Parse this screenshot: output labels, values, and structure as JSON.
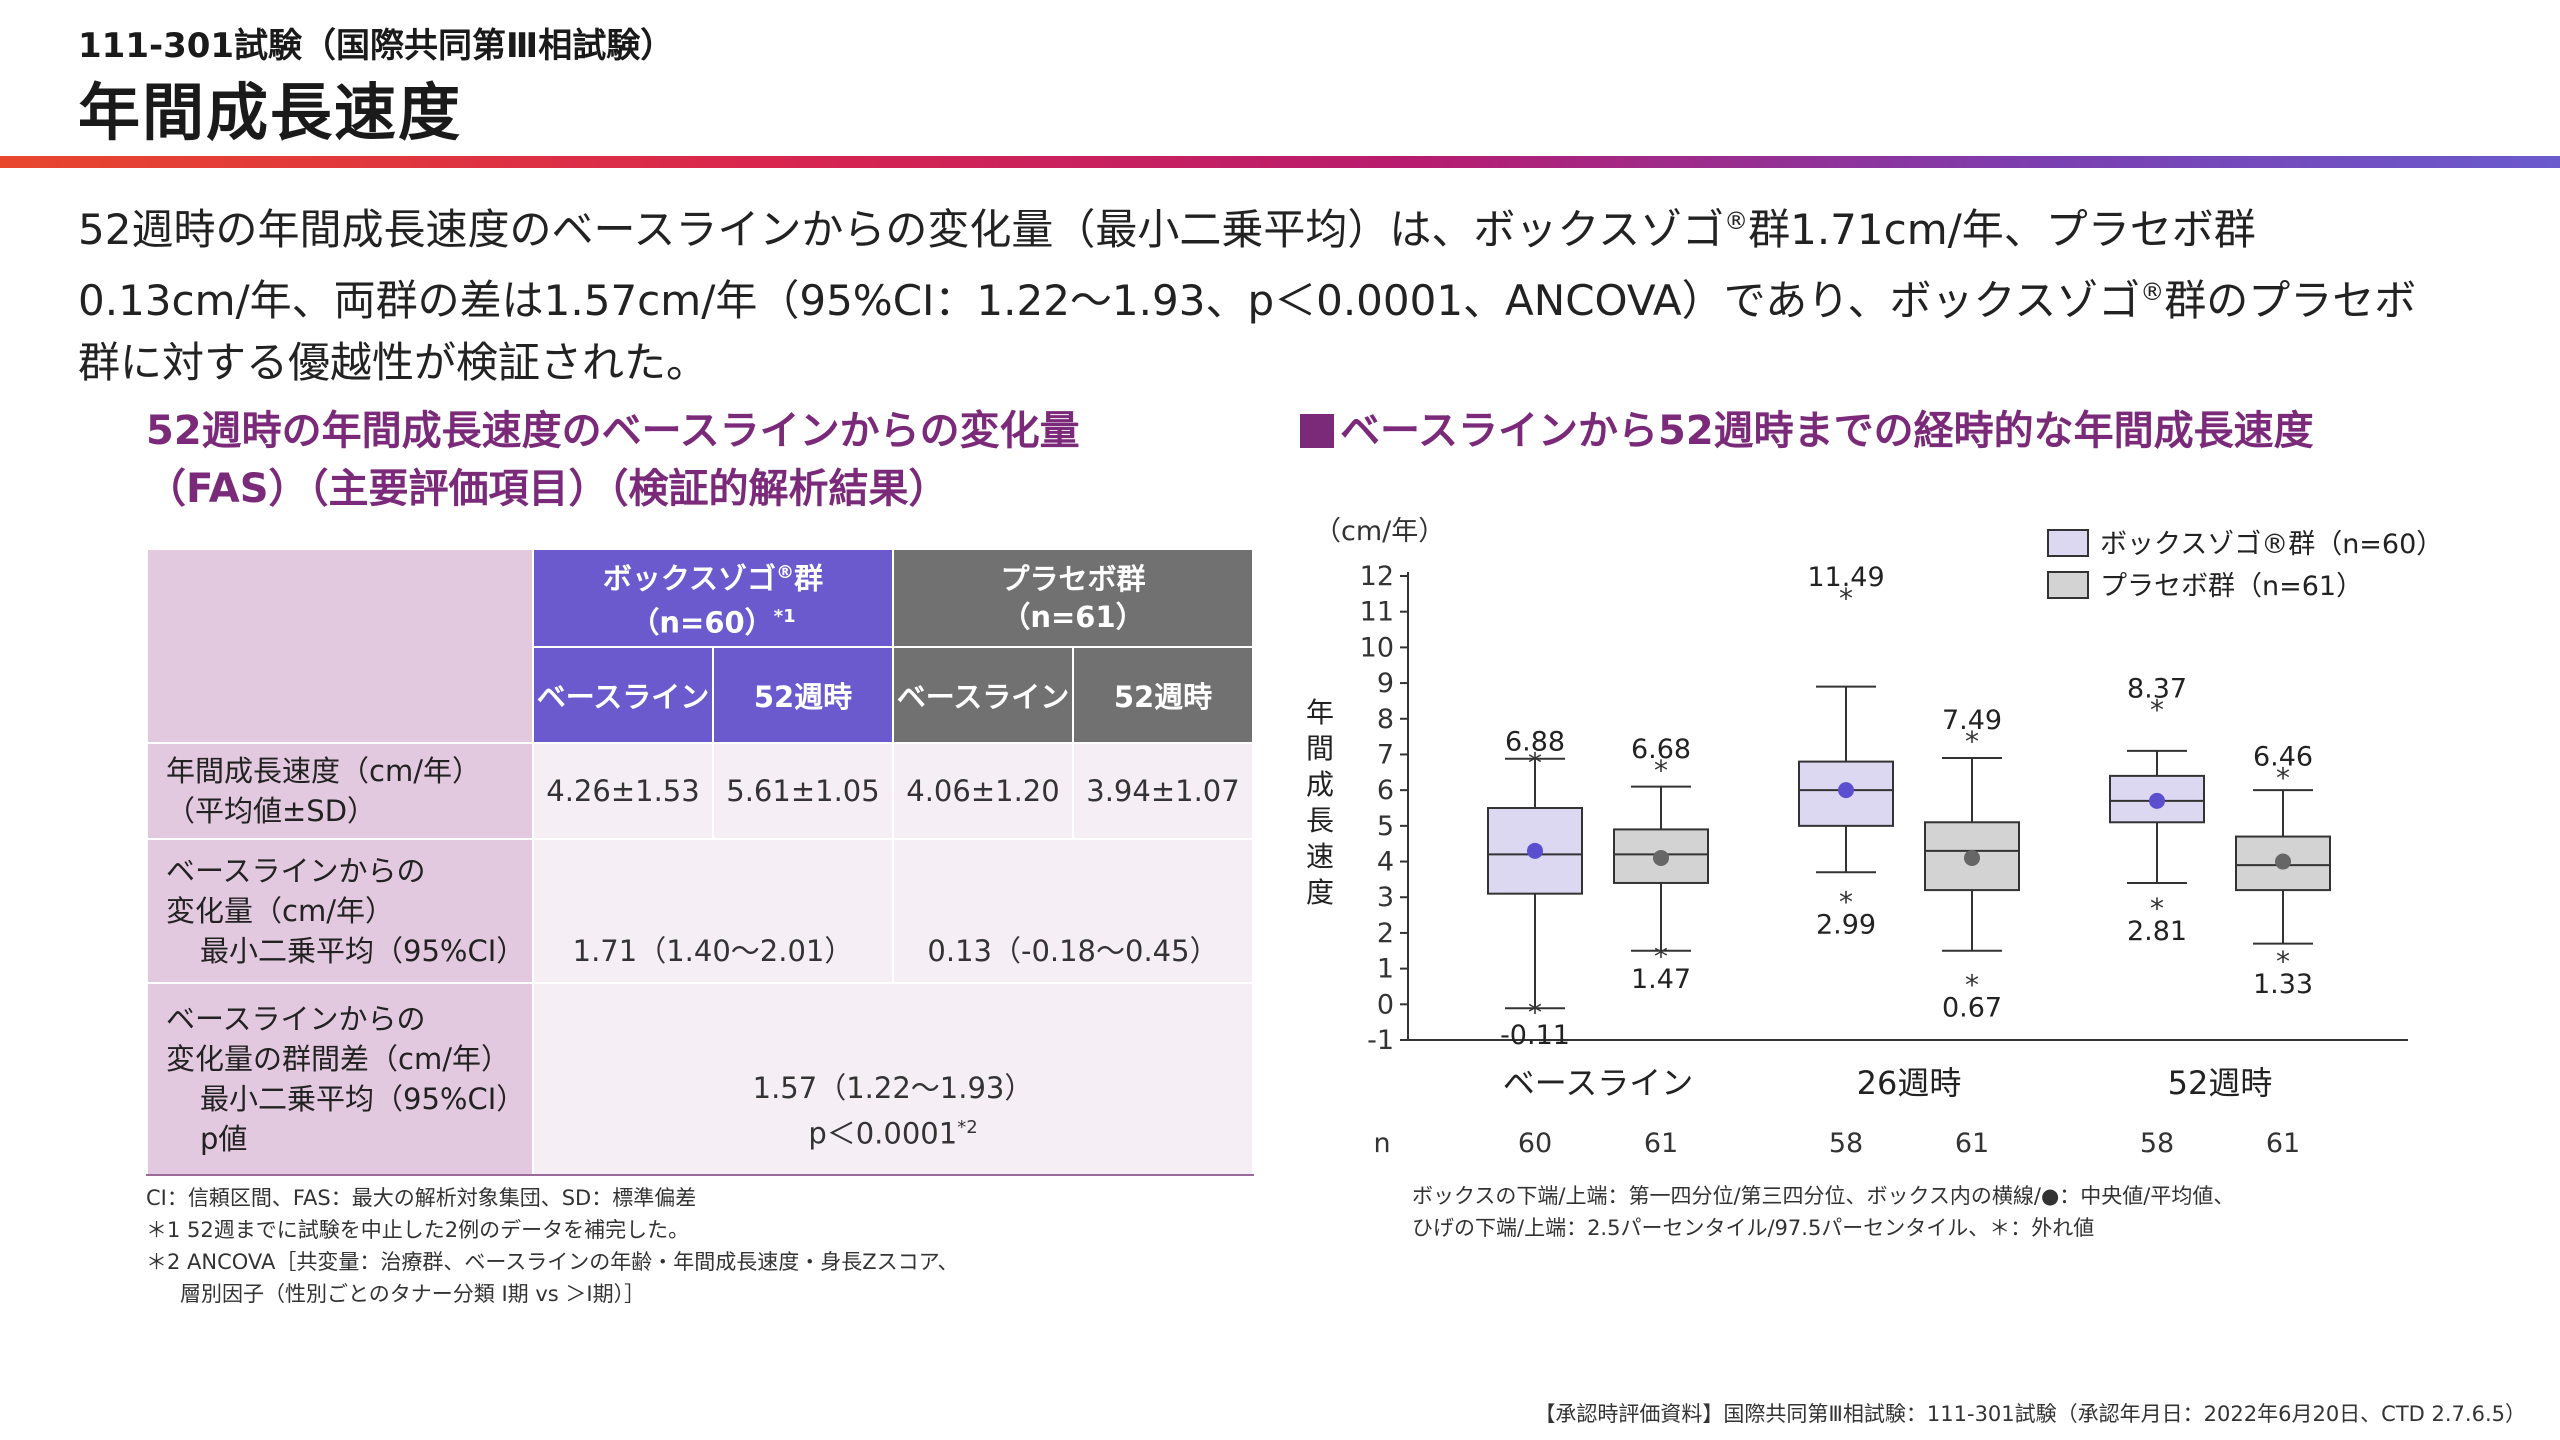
{
  "header": {
    "subtitle": "111-301試験（国際共同第Ⅲ相試験）",
    "title": "年間成長速度",
    "accent_colors": [
      "#e8472e",
      "#b81c6e",
      "#6a5acd"
    ]
  },
  "summary": {
    "line1_a": "52週時の年間成長速度のベースラインからの変化量（最小二乗平均）は、ボックスゾゴ",
    "reg": "®",
    "line1_b": "群1.71cm/年、プラセボ群",
    "line2_a": "0.13cm/年、両群の差は1.57cm/年（95%CI：1.22〜1.93、p＜0.0001、ANCOVA）であり、ボックスゾゴ",
    "line2_b": "群のプラセボ",
    "line3": "群に対する優越性が検証された。"
  },
  "left_section": {
    "title_line1": "52週時の年間成長速度のベースラインからの変化量",
    "title_line2": "（FAS）（主要評価項目）（検証的解析結果）"
  },
  "table": {
    "voxzogo_header_line1": "ボックスゾゴ",
    "voxzogo_header_reg": "®",
    "voxzogo_header_line1b": "群",
    "voxzogo_header_line2": "（n=60）",
    "voxzogo_header_note": "*1",
    "placebo_header_line1": "プラセボ群",
    "placebo_header_line2": "（n=61）",
    "sub_baseline": "ベースライン",
    "sub_52w": "52週時",
    "row1_label_line1": "年間成長速度（cm/年）",
    "row1_label_line2": "（平均値±SD）",
    "row1_values": [
      "4.26±1.53",
      "5.61±1.05",
      "4.06±1.20",
      "3.94±1.07"
    ],
    "row2_label_line1": "ベースラインからの",
    "row2_label_line2": "変化量（cm/年）",
    "row2_label_line3": "最小二乗平均（95%CI）",
    "row2_voxzogo": "1.71（1.40〜2.01）",
    "row2_placebo": "0.13（-0.18〜0.45）",
    "row3_label_line1": "ベースラインからの",
    "row3_label_line2": "変化量の群間差（cm/年）",
    "row3_label_line3": "最小二乗平均（95%CI）",
    "row3_label_line4": "p値",
    "row3_value_line1": "1.57（1.22〜1.93）",
    "row3_value_line2": "p＜0.0001",
    "row3_value_note": "*2"
  },
  "notes": {
    "line1": "CI：信頼区間、FAS：最大の解析対象集団、SD：標準偏差",
    "line2": "＊1 52週までに試験を中止した2例のデータを補完した。",
    "line3": "＊2 ANCOVA［共変量：治療群、ベースラインの年齢・年間成長速度・身長Zスコア、",
    "line4": "層別因子（性別ごとのタナー分類 Ⅰ期 vs ＞Ⅰ期）］"
  },
  "right_section": {
    "title": "ベースラインから52週時までの経時的な年間成長速度"
  },
  "chart_data": {
    "type": "boxplot",
    "title": "ベースラインから52週時までの経時的な年間成長速度",
    "ylabel": "年間成長速度",
    "yunit": "（cm/年）",
    "ylim": [
      -1,
      12
    ],
    "yticks": [
      -1,
      0,
      1,
      2,
      3,
      4,
      5,
      6,
      7,
      8,
      9,
      10,
      11,
      12
    ],
    "categories": [
      "ベースライン",
      "26週時",
      "52週時"
    ],
    "n_label": "n",
    "legend_placement": "top-right",
    "series": [
      {
        "name": "ボックスゾゴ®群（n=60）",
        "color": "#dcd8f2",
        "dot_color": "#5b4fcf",
        "boxes": [
          {
            "whisker_low": -0.11,
            "q1": 3.1,
            "median": 4.2,
            "mean": 4.3,
            "q3": 5.5,
            "whisker_high": 6.88,
            "outliers": [
              -0.11,
              6.88
            ],
            "outlier_labels": [
              "-0.11",
              "6.88"
            ],
            "n": "60"
          },
          {
            "whisker_low": 3.7,
            "q1": 5.0,
            "median": 6.0,
            "mean": 6.0,
            "q3": 6.8,
            "whisker_high": 8.9,
            "outliers": [
              11.49,
              2.99
            ],
            "outlier_labels": [
              "11.49",
              "2.99"
            ],
            "n": "58"
          },
          {
            "whisker_low": 3.4,
            "q1": 5.1,
            "median": 5.7,
            "mean": 5.7,
            "q3": 6.4,
            "whisker_high": 7.1,
            "outliers": [
              8.37,
              2.81
            ],
            "outlier_labels": [
              "8.37",
              "2.81"
            ],
            "n": "58"
          }
        ]
      },
      {
        "name": "プラセボ群（n=61）",
        "color": "#d3d3d3",
        "dot_color": "#666666",
        "boxes": [
          {
            "whisker_low": 1.5,
            "q1": 3.4,
            "median": 4.2,
            "mean": 4.1,
            "q3": 4.9,
            "whisker_high": 6.1,
            "outliers": [
              6.68,
              1.47
            ],
            "outlier_labels": [
              "6.68",
              "1.47"
            ],
            "n": "61"
          },
          {
            "whisker_low": 1.5,
            "q1": 3.2,
            "median": 4.3,
            "mean": 4.1,
            "q3": 5.1,
            "whisker_high": 6.9,
            "outliers": [
              7.49,
              0.67
            ],
            "outlier_labels": [
              "7.49",
              "0.67"
            ],
            "n": "61"
          },
          {
            "whisker_low": 1.7,
            "q1": 3.2,
            "median": 3.9,
            "mean": 4.0,
            "q3": 4.7,
            "whisker_high": 6.0,
            "outliers": [
              6.46,
              1.33
            ],
            "outlier_labels": [
              "6.46",
              "1.33"
            ],
            "n": "61"
          }
        ]
      }
    ]
  },
  "chart_caption": {
    "line1": "ボックスの下端/上端：第一四分位/第三四分位、ボックス内の横線/●：中央値/平均値、",
    "line2": "ひげの下端/上端：2.5パーセンタイル/97.5パーセンタイル、＊：外れ値"
  },
  "footer": "【承認時評価資料】国際共同第Ⅲ相試験：111-301試験（承認年月日：2022年6月20日、CTD 2.7.6.5）"
}
